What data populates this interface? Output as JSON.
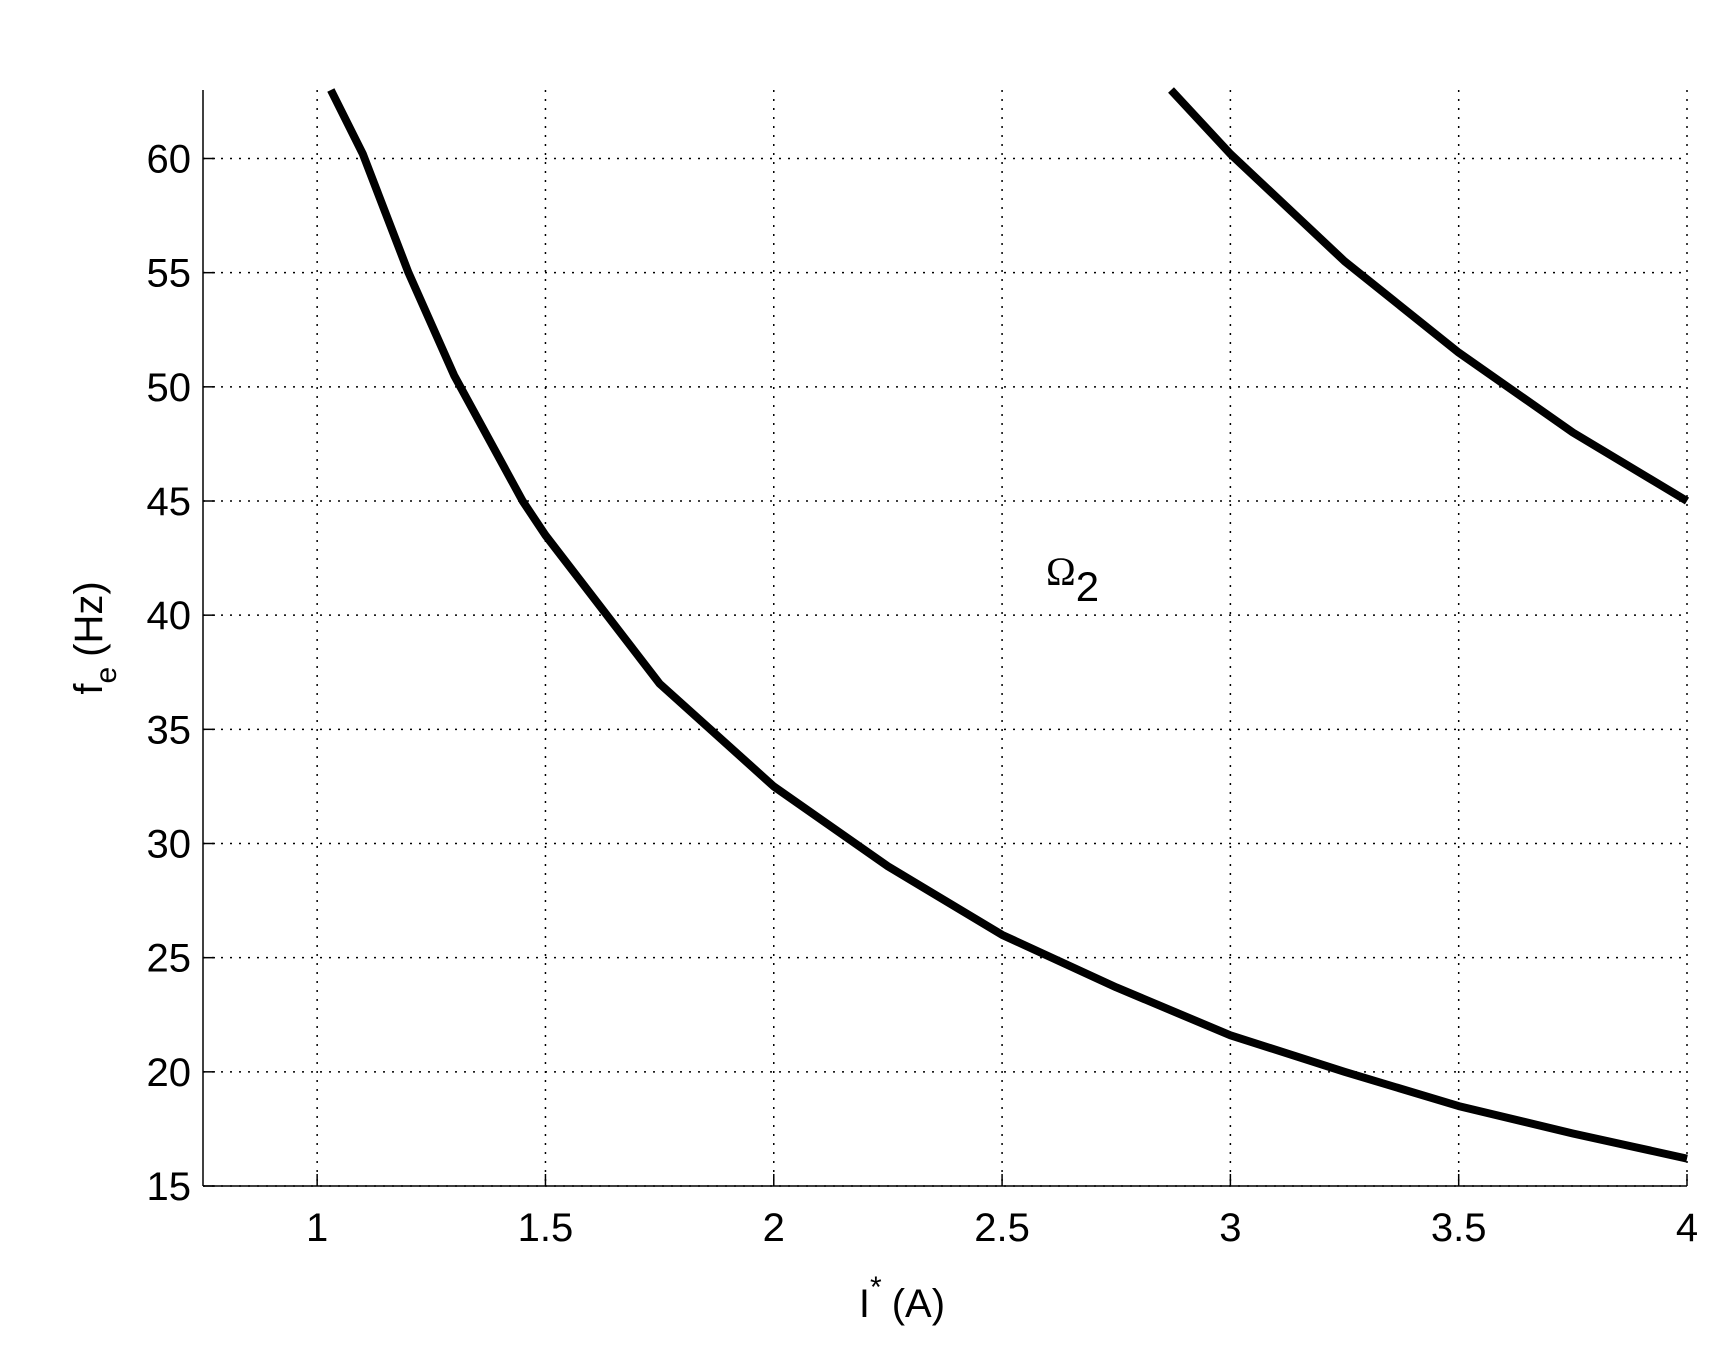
{
  "chart_data": {
    "type": "line",
    "x_label": {
      "main": "I",
      "sup": "*",
      "unit": "(A)"
    },
    "y_label": {
      "main": "f",
      "sub": "e",
      "unit": "(Hz)"
    },
    "annotation": {
      "main": "Ω",
      "sub": "2"
    },
    "xlim": [
      0.75,
      4
    ],
    "ylim": [
      15,
      63
    ],
    "xticks": [
      1,
      1.5,
      2,
      2.5,
      3,
      3.5,
      4
    ],
    "yticks": [
      15,
      20,
      25,
      30,
      35,
      40,
      45,
      50,
      55,
      60
    ],
    "grid": true,
    "series": [
      {
        "color": "#000000",
        "x": [
          1.03,
          1.1,
          1.2,
          1.3,
          1.45,
          1.5,
          1.75,
          2,
          2.25,
          2.5,
          2.75,
          3,
          3.25,
          3.5,
          3.75,
          4
        ],
        "values": [
          63,
          60.2,
          55,
          50.5,
          45,
          43.5,
          37,
          32.5,
          29,
          26,
          23.7,
          21.6,
          20,
          18.5,
          17.3,
          16.2
        ]
      },
      {
        "color": "#000000",
        "x": [
          2.87,
          3,
          3.25,
          3.5,
          3.75,
          4
        ],
        "values": [
          63,
          60.2,
          55.5,
          51.5,
          48,
          45
        ]
      }
    ]
  }
}
